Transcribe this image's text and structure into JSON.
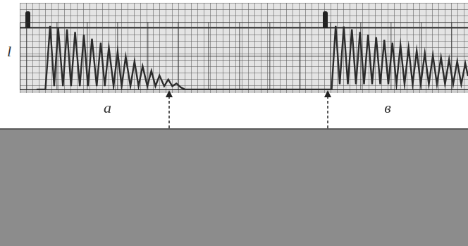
{
  "chart_data": {
    "type": "line",
    "ylabel": "l",
    "x": [
      25,
      38,
      45,
      51,
      57,
      64,
      70,
      76,
      82,
      89,
      95,
      101,
      107,
      114,
      120,
      126,
      132,
      139,
      145,
      151,
      157,
      164,
      170,
      176,
      182,
      189,
      195,
      201,
      207,
      214,
      220,
      226,
      232,
      239,
      245,
      462,
      468,
      474,
      480,
      486,
      492,
      498,
      504,
      510,
      516,
      522,
      528,
      534,
      540,
      546,
      552,
      558,
      564,
      570,
      576,
      582,
      588,
      594,
      600,
      606,
      612,
      618,
      624,
      630,
      636,
      642,
      648,
      654,
      660,
      664
    ],
    "values": [
      0,
      0,
      9.5,
      0.5,
      9.2,
      0.5,
      9.0,
      0.5,
      8.6,
      0.5,
      8.2,
      0.5,
      7.6,
      0.5,
      7.0,
      0.5,
      6.3,
      0.5,
      5.6,
      0.5,
      4.9,
      0.5,
      4.2,
      0.5,
      3.5,
      0.5,
      2.8,
      0.5,
      2.1,
      0.5,
      1.5,
      0.5,
      0.9,
      0.3,
      0,
      0,
      9.5,
      0.8,
      9.4,
      0.8,
      9.0,
      0.8,
      8.6,
      0.8,
      8.2,
      0.8,
      7.8,
      0.8,
      7.4,
      0.8,
      7.0,
      0.8,
      6.6,
      0.8,
      6.2,
      0.8,
      5.8,
      0.8,
      5.4,
      0.8,
      5.1,
      0.8,
      4.8,
      0.8,
      4.5,
      0.8,
      4.2,
      0.8,
      3.9,
      2.0
    ],
    "color": "#2b2b2b",
    "xlim": [
      0,
      664
    ],
    "xticks": [
      10,
      55,
      100,
      145,
      190,
      235,
      280,
      325,
      370,
      415,
      460,
      505,
      550,
      595,
      640
    ],
    "ylim": [
      0,
      10
    ],
    "yticks": [
      0,
      5,
      10
    ],
    "grid": true,
    "tick_labels": false,
    "annotations": [
      {
        "text": "а",
        "x": 130
      },
      {
        "text": "в",
        "x": 545
      }
    ]
  }
}
